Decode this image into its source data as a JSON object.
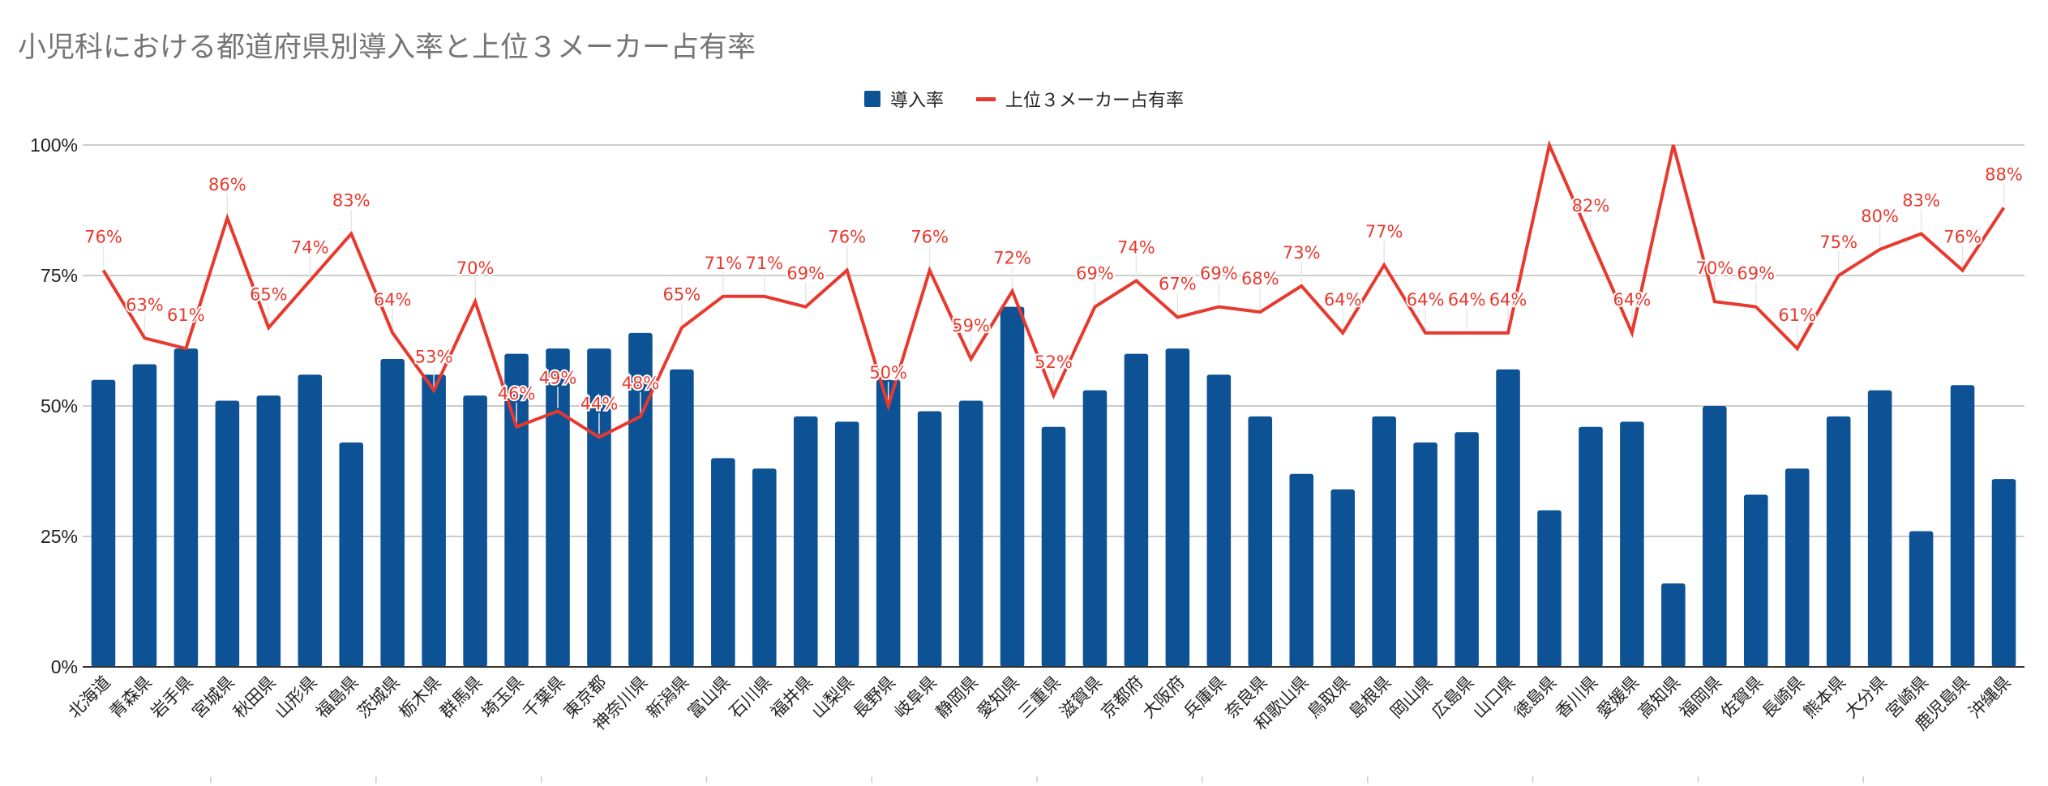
{
  "chart_data": {
    "type": "bar+line",
    "title": "小児科における都道府県別導入率と上位３メーカー占有率",
    "legend": [
      "導入率",
      "上位３メーカー占有率"
    ],
    "legend_position": "top-center",
    "colors": {
      "bar": "#0d5295",
      "line": "#e8392e"
    },
    "ylim": [
      0,
      100
    ],
    "yticks": [
      "0%",
      "25%",
      "50%",
      "75%",
      "100%"
    ],
    "grid": true,
    "categories": [
      "北海道",
      "青森県",
      "岩手県",
      "宮城県",
      "秋田県",
      "山形県",
      "福島県",
      "茨城県",
      "栃木県",
      "群馬県",
      "埼玉県",
      "千葉県",
      "東京都",
      "神奈川県",
      "新潟県",
      "富山県",
      "石川県",
      "福井県",
      "山梨県",
      "長野県",
      "岐阜県",
      "静岡県",
      "愛知県",
      "三重県",
      "滋賀県",
      "京都府",
      "大阪府",
      "兵庫県",
      "奈良県",
      "和歌山県",
      "鳥取県",
      "島根県",
      "岡山県",
      "広島県",
      "山口県",
      "徳島県",
      "香川県",
      "愛媛県",
      "高知県",
      "福岡県",
      "佐賀県",
      "長崎県",
      "熊本県",
      "大分県",
      "宮崎県",
      "鹿児島県",
      "沖縄県"
    ],
    "series": [
      {
        "name": "導入率",
        "type": "bar",
        "values": [
          55,
          58,
          61,
          51,
          52,
          56,
          43,
          59,
          56,
          52,
          60,
          61,
          61,
          64,
          57,
          40,
          38,
          48,
          47,
          55,
          49,
          51,
          69,
          46,
          53,
          60,
          61,
          56,
          48,
          37,
          34,
          48,
          43,
          45,
          57,
          30,
          46,
          47,
          16,
          50,
          33,
          38,
          48,
          53,
          26,
          54,
          36
        ]
      },
      {
        "name": "上位３メーカー占有率",
        "type": "line",
        "values": [
          76,
          63,
          61,
          86,
          65,
          74,
          83,
          64,
          53,
          70,
          46,
          49,
          44,
          48,
          65,
          71,
          71,
          69,
          76,
          50,
          76,
          59,
          72,
          52,
          69,
          74,
          67,
          69,
          68,
          73,
          64,
          77,
          64,
          64,
          64,
          100,
          82,
          64,
          100,
          70,
          69,
          61,
          75,
          80,
          83,
          76,
          88
        ],
        "labels": [
          "76%",
          "63%",
          "61%",
          "86%",
          "65%",
          "74%",
          "83%",
          "64%",
          "53%",
          "70%",
          "46%",
          "49%",
          "44%",
          "48%",
          "65%",
          "71%",
          "71%",
          "69%",
          "76%",
          "50%",
          "76%",
          "59%",
          "72%",
          "52%",
          "69%",
          "74%",
          "67%",
          "69%",
          "68%",
          "73%",
          "64%",
          "77%",
          "64%",
          "64%",
          "64%",
          null,
          "82%",
          "64%",
          null,
          "70%",
          "69%",
          "61%",
          "75%",
          "80%",
          "83%",
          "76%",
          "88%"
        ]
      }
    ]
  }
}
